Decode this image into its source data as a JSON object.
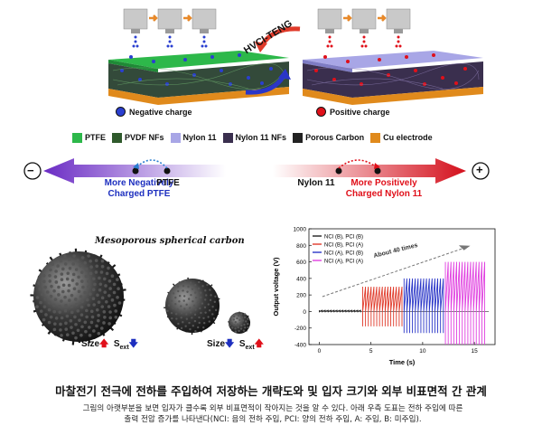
{
  "top": {
    "hvcl_label": "HVCI-TENG",
    "negative_charge": "Negative charge",
    "positive_charge": "Positive charge"
  },
  "legend": [
    {
      "label": "PTFE",
      "color": "#2db84a"
    },
    {
      "label": "PVDF NFs",
      "color": "#2f5a2c"
    },
    {
      "label": "Nylon 11",
      "color": "#a8a6e6"
    },
    {
      "label": "Nylon 11 NFs",
      "color": "#3a2f4e"
    },
    {
      "label": "Porous Carbon",
      "color": "#222222"
    },
    {
      "label": "Cu electrode",
      "color": "#e08a1c"
    }
  ],
  "scale": {
    "minus": "−",
    "plus": "+",
    "more_negative": "More Negatively Charged PTFE",
    "more_negative_l1": "More Negatively",
    "more_negative_l2": "Charged PTFE",
    "ptfe": "PTFE",
    "nylon": "Nylon 11",
    "more_positive_l1": "More Positively",
    "more_positive_l2": "Charged Nylon 11",
    "neg_color": "#1d2fbf",
    "pos_color": "#e0101a"
  },
  "spheres": {
    "title": "Mesoporous spherical carbon",
    "size_label_1": "Size",
    "sext_label_1": "S",
    "sext_sub_1": "ext",
    "size_label_2": "Size",
    "sext_label_2": "S",
    "sext_sub_2": "ext"
  },
  "chart_data": {
    "type": "line",
    "xlabel": "Time (s)",
    "ylabel": "Output voltage (V)",
    "xlim": [
      -1,
      17
    ],
    "ylim": [
      -400,
      1000
    ],
    "xticks": [
      0,
      5,
      10,
      15
    ],
    "yticks": [
      -400,
      -200,
      0,
      200,
      400,
      600,
      800,
      1000
    ],
    "annotation": "About 40 times",
    "series": [
      {
        "name": "NCI (B), PCI (B)",
        "color": "#222222",
        "t_start": 0.0,
        "t_end": 4.0,
        "peak": 15,
        "trough": -10
      },
      {
        "name": "NCI (B), PCI (A)",
        "color": "#e03a2a",
        "t_start": 4.2,
        "t_end": 8.0,
        "peak": 300,
        "trough": -180
      },
      {
        "name": "NCI (A), PCI (B)",
        "color": "#2a36c8",
        "t_start": 8.2,
        "t_end": 12.0,
        "peak": 400,
        "trough": -260
      },
      {
        "name": "NCI (A), PCI (A)",
        "color": "#e040e0",
        "t_start": 12.2,
        "t_end": 16.0,
        "peak": 600,
        "trough": -400
      }
    ]
  },
  "caption": {
    "title": "마찰전기 전극에 전하를 주입하여 저장하는 개략도와 및 입자 크기와 외부 비표면적 간 관계",
    "body_l1": "그림의 아랫부분을 보면 입자가 클수록 외부 비표면적이 작아지는 것을 알 수 있다. 아래 우측 도표는 전하 주입에 따른",
    "body_l2": "출력 전압 증가를 나타낸다(NCI: 음의 전하 주입, PCI: 양의 전하 주입, A: 주입, B: 미주입)."
  }
}
